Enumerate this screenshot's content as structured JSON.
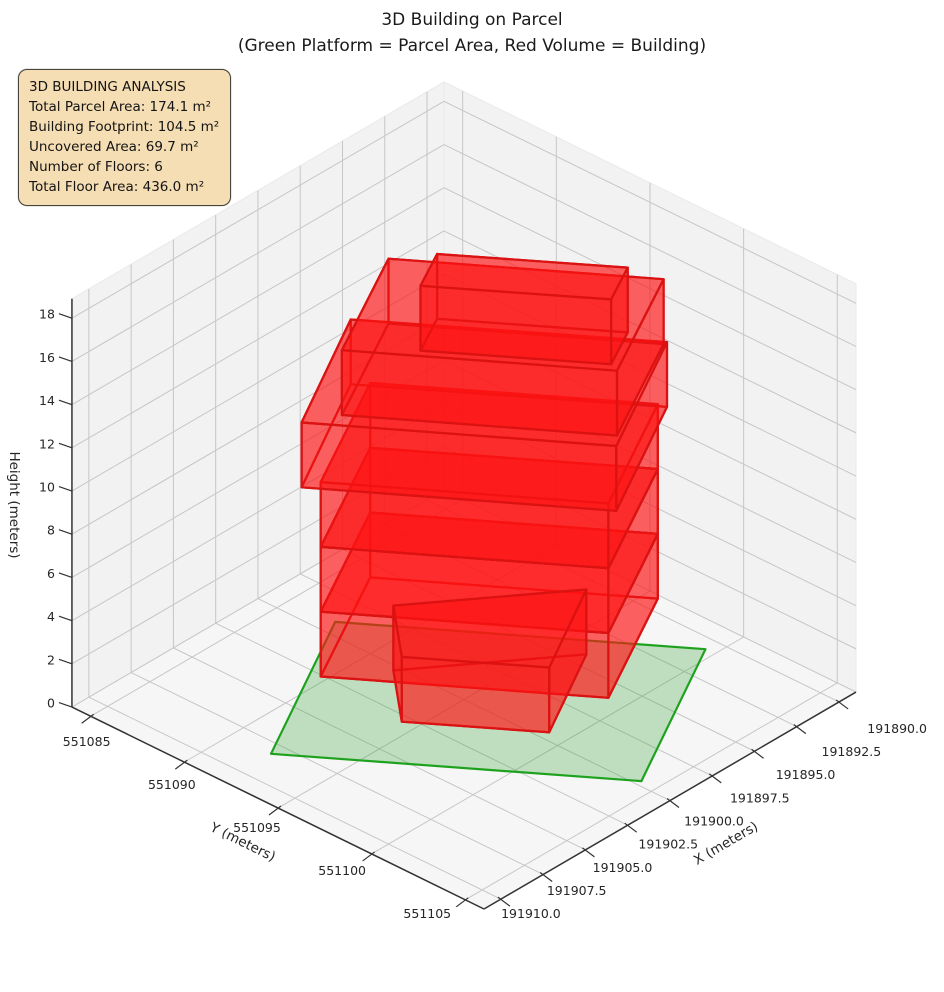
{
  "title": {
    "line1": "3D Building on Parcel",
    "line2": "(Green Platform = Parcel Area, Red Volume = Building)"
  },
  "info_box": {
    "lines": [
      "3D BUILDING ANALYSIS",
      "Total Parcel Area: 174.1 m²",
      "Building Footprint: 104.5 m²",
      "Uncovered Area: 69.7 m²",
      "Number of Floors: 6",
      "Total Floor Area: 436.0 m²"
    ],
    "background": "#f5deb3"
  },
  "chart_data": {
    "type": "3d_building_on_parcel",
    "legend_note": "Green Platform = Parcel Area, Red Volume = Building",
    "stats": {
      "total_parcel_area_m2": 174.1,
      "building_footprint_m2": 104.5,
      "uncovered_area_m2": 69.7,
      "number_of_floors": 6,
      "total_floor_area_m2": 436.0,
      "floor_height_m": 3.0,
      "building_height_m": 18.0
    },
    "axes": {
      "x": {
        "label": "X (meters)",
        "range": [
          191889,
          191911
        ],
        "tick_values": [
          191890,
          191892.5,
          191895,
          191897.5,
          191900,
          191902.5,
          191905,
          191907.5,
          191910
        ],
        "tick_labels": [
          "191890.0",
          "191892.5",
          "191895.0",
          "191897.5",
          "191900.0",
          "191902.5",
          "191905.0",
          "191907.5",
          "191910.0"
        ]
      },
      "y": {
        "label": "Y (meters)",
        "range": [
          551084,
          551106
        ],
        "tick_values": [
          551085,
          551090,
          551095,
          551100,
          551105
        ],
        "tick_labels": [
          "551085",
          "551090",
          "551095",
          "551100",
          "551105"
        ]
      },
      "z": {
        "label": "Height (meters)",
        "range": [
          0,
          18.9
        ],
        "tick_values": [
          0,
          2,
          4,
          6,
          8,
          10,
          12,
          14,
          16,
          18
        ],
        "tick_labels": [
          "0",
          "2",
          "4",
          "6",
          "8",
          "10",
          "12",
          "14",
          "16",
          "18"
        ]
      }
    },
    "parcel": {
      "name": "parcel-platform",
      "z": 0,
      "fill": "#2ca02c",
      "fill_opacity": 0.27,
      "edge": "#1ea21e",
      "polygon_xy": [
        [
          191908.2,
          551092.1
        ],
        [
          191899.7,
          551104.2
        ],
        [
          191890.7,
          551099.5
        ],
        [
          191899.2,
          551087.4
        ]
      ]
    },
    "building": {
      "fill": "#ff1414",
      "fill_opacity": 0.42,
      "edge": "#db1212",
      "floors": [
        {
          "name": "floor-1",
          "z0": 0,
          "z1": 3,
          "base": [
            [
              191902.6,
              551089.7
            ],
            [
              191896.0,
              551099.1
            ],
            [
              191889.2,
              551095.6
            ],
            [
              191895.8,
              551086.2
            ]
          ]
        },
        {
          "name": "floor-2",
          "z0": 3,
          "z1": 6,
          "base": [
            [
              191902.6,
              551089.7
            ],
            [
              191896.0,
              551099.1
            ],
            [
              191889.2,
              551095.6
            ],
            [
              191895.8,
              551086.2
            ]
          ]
        },
        {
          "name": "ground-extension",
          "z0": 0,
          "z1": 3,
          "base": [
            [
              191902.9,
              551094.3
            ],
            [
              191899.5,
              551099.1
            ],
            [
              191894.2,
              551096.3
            ],
            [
              191900.3,
              551091.5
            ]
          ]
        },
        {
          "name": "floor-3",
          "z0": 6,
          "z1": 9,
          "base": [
            [
              191902.6,
              551089.7
            ],
            [
              191896.0,
              551099.1
            ],
            [
              191889.2,
              551095.6
            ],
            [
              191895.8,
              551086.2
            ]
          ]
        },
        {
          "name": "floor-4",
          "z0": 9,
          "z1": 12,
          "base": [
            [
              191903.4,
              551089.4
            ],
            [
              191896.2,
              551099.7
            ],
            [
              191889.1,
              551096.0
            ],
            [
              191896.4,
              551085.7
            ]
          ]
        },
        {
          "name": "floor-5",
          "z0": 12,
          "z1": 15,
          "base": [
            [
              191901.9,
              551090.2
            ],
            [
              191895.6,
              551099.2
            ],
            [
              191889.3,
              551096.0
            ],
            [
              191895.6,
              551087.0
            ]
          ]
        },
        {
          "name": "floor-6",
          "z0": 15,
          "z1": 18,
          "base": [
            [
              191899.8,
              551092.5
            ],
            [
              191895.4,
              551098.7
            ],
            [
              191893.2,
              551097.6
            ],
            [
              191897.6,
              551091.4
            ]
          ]
        }
      ]
    },
    "style": {
      "pane_wall": "#f2f2f2",
      "pane_floor": "#f6f6f6",
      "grid": "#c6c6c6",
      "axis_line": "#333333",
      "text": "#262626"
    }
  }
}
